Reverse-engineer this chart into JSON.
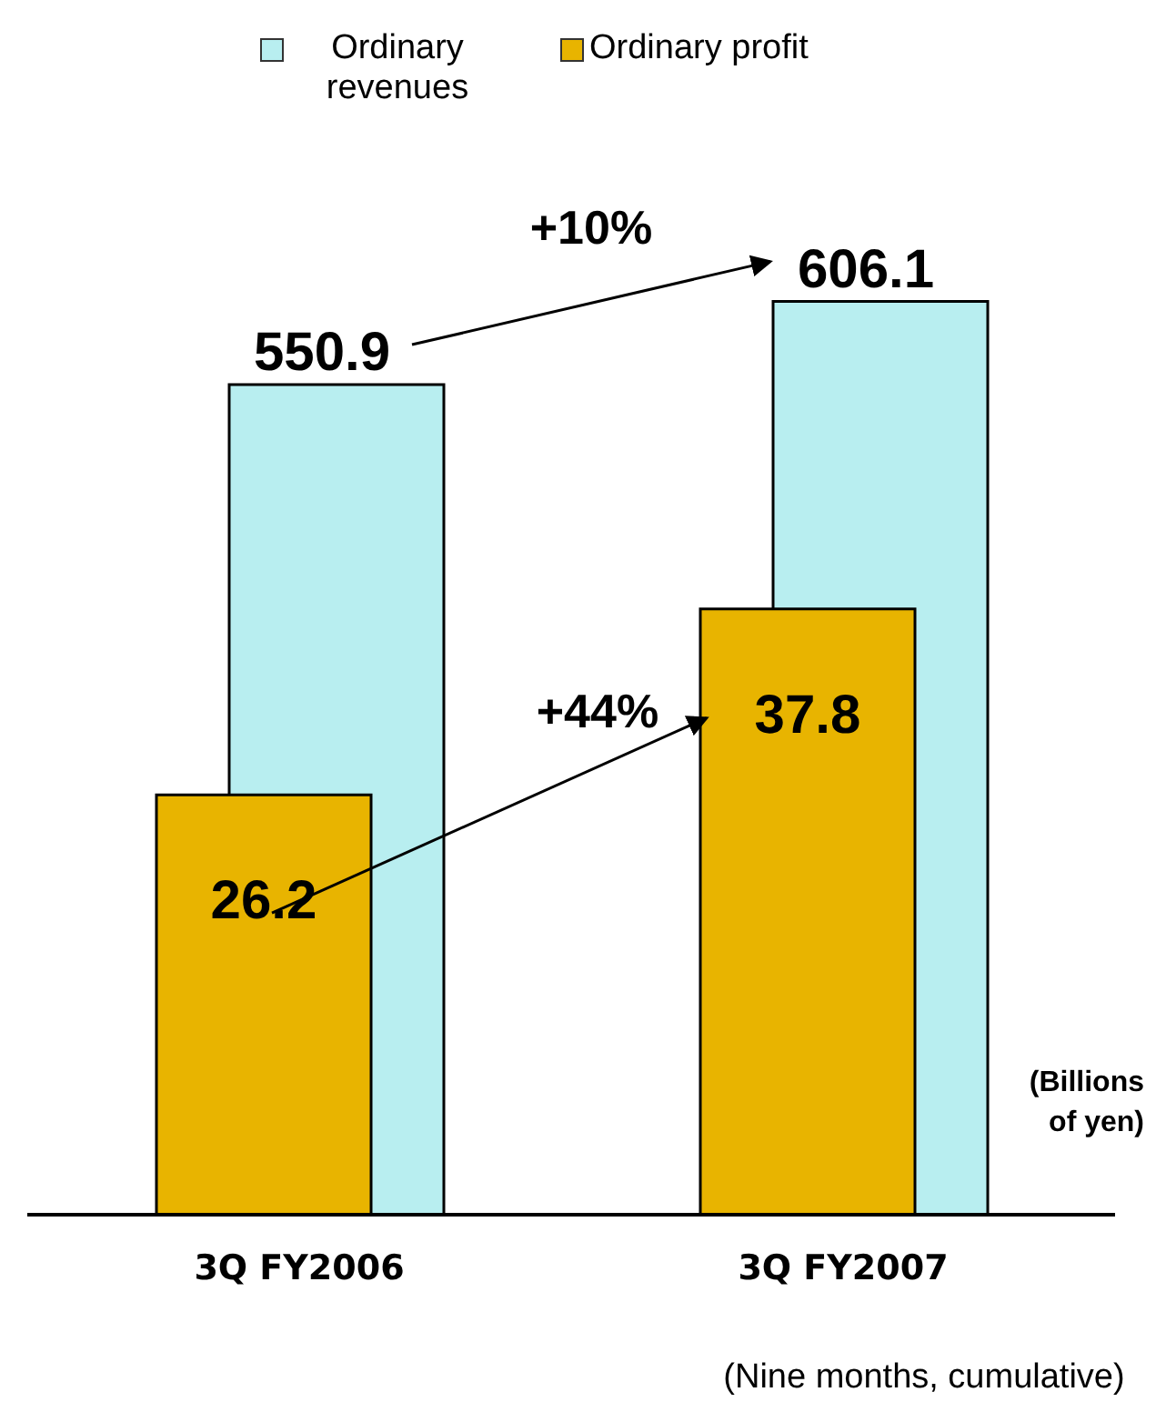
{
  "chart_data": {
    "type": "bar",
    "categories": [
      "3Q FY2006",
      "3Q FY2007"
    ],
    "series": [
      {
        "name": "Ordinary revenues",
        "color": "#b8eef0",
        "values": [
          550.9,
          606.1
        ]
      },
      {
        "name": "Ordinary profit",
        "color": "#e8b400",
        "values": [
          26.2,
          37.8
        ],
        "axis": "y2"
      }
    ],
    "data_labels": true,
    "legend": "top",
    "tick_labels": "x",
    "annotations": [
      "+10%",
      "+44%",
      "(Billions of yen)",
      "(Nine months, cumulative)"
    ]
  }
}
